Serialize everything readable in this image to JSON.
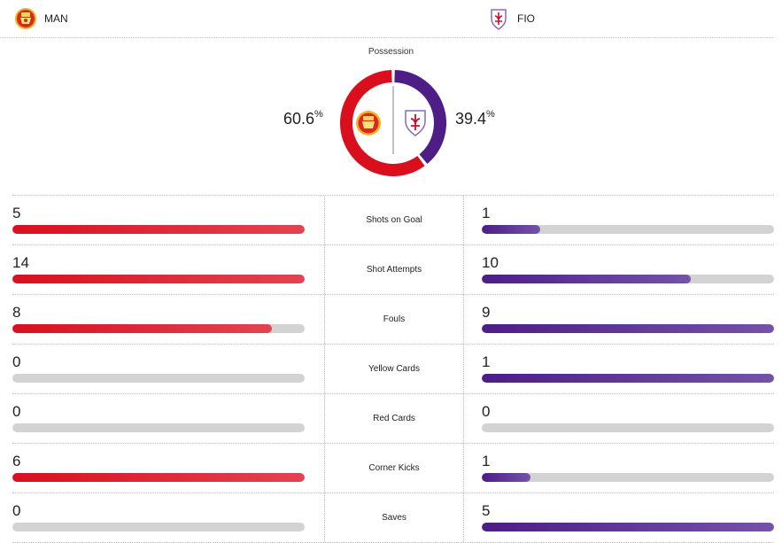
{
  "home": {
    "abbr": "MAN",
    "color": "#d90f1e",
    "icon": "manchester-united-crest-icon"
  },
  "away": {
    "abbr": "FIO",
    "color": "#4e1d86",
    "icon": "fiorentina-crest-icon"
  },
  "possession": {
    "label": "Possession",
    "home": "60.6",
    "away": "39.4",
    "unit": "%",
    "home_fraction": 0.606,
    "away_fraction": 0.394
  },
  "stats": [
    {
      "label": "Shots on Goal",
      "home": "5",
      "away": "1",
      "home_fill": 1.0,
      "away_fill": 0.2
    },
    {
      "label": "Shot Attempts",
      "home": "14",
      "away": "10",
      "home_fill": 1.0,
      "away_fill": 0.714
    },
    {
      "label": "Fouls",
      "home": "8",
      "away": "9",
      "home_fill": 0.889,
      "away_fill": 1.0
    },
    {
      "label": "Yellow Cards",
      "home": "0",
      "away": "1",
      "home_fill": 0.0,
      "away_fill": 1.0
    },
    {
      "label": "Red Cards",
      "home": "0",
      "away": "0",
      "home_fill": 0.0,
      "away_fill": 0.0
    },
    {
      "label": "Corner Kicks",
      "home": "6",
      "away": "1",
      "home_fill": 1.0,
      "away_fill": 0.167
    },
    {
      "label": "Saves",
      "home": "0",
      "away": "5",
      "home_fill": 0.0,
      "away_fill": 1.0
    }
  ]
}
